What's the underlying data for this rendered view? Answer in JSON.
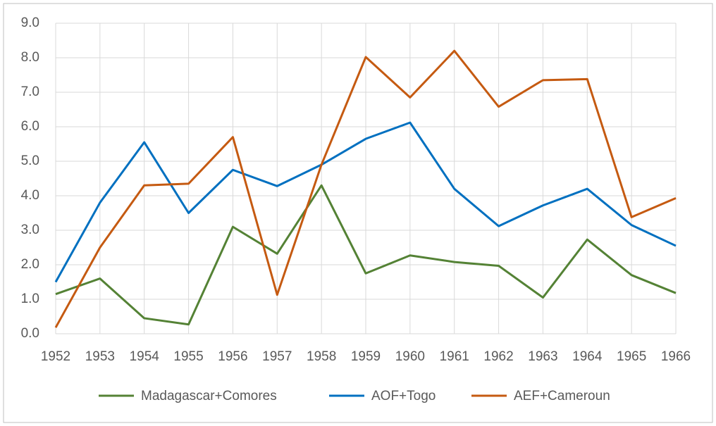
{
  "chart_data": {
    "type": "line",
    "categories": [
      "1952",
      "1953",
      "1954",
      "1955",
      "1956",
      "1957",
      "1958",
      "1959",
      "1960",
      "1961",
      "1962",
      "1963",
      "1964",
      "1965",
      "1966"
    ],
    "series": [
      {
        "name": "Madagascar+Comores",
        "color": "#548235",
        "values": [
          1.15,
          1.6,
          0.45,
          0.27,
          3.1,
          2.32,
          4.3,
          1.75,
          2.27,
          2.08,
          1.97,
          1.05,
          2.73,
          1.7,
          1.18
        ]
      },
      {
        "name": "AOF+Togo",
        "color": "#0070c0",
        "values": [
          1.5,
          3.8,
          5.55,
          3.5,
          4.75,
          4.28,
          4.9,
          5.65,
          6.12,
          4.2,
          3.12,
          3.72,
          4.2,
          3.15,
          2.55
        ]
      },
      {
        "name": "AEF+Cameroun",
        "color": "#c55a11",
        "values": [
          0.18,
          2.5,
          4.3,
          4.35,
          5.7,
          1.13,
          4.9,
          8.02,
          6.85,
          8.2,
          6.58,
          7.35,
          7.38,
          3.38,
          3.93
        ]
      }
    ],
    "ylim": [
      0,
      9
    ],
    "yticks": [
      {
        "value": 0,
        "label": "0.0"
      },
      {
        "value": 1,
        "label": "1.0"
      },
      {
        "value": 2,
        "label": "2.0"
      },
      {
        "value": 3,
        "label": "3.0"
      },
      {
        "value": 4,
        "label": "4.0"
      },
      {
        "value": 5,
        "label": "5.0"
      },
      {
        "value": 6,
        "label": "6.0"
      },
      {
        "value": 7,
        "label": "7.0"
      },
      {
        "value": 8,
        "label": "8.0"
      },
      {
        "value": 9,
        "label": "9.0"
      }
    ],
    "grid": true,
    "legend": "bottom"
  }
}
